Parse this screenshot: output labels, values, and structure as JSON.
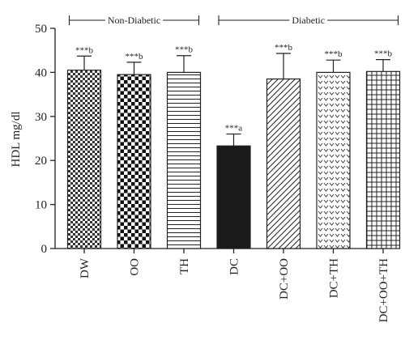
{
  "chart_data": {
    "type": "bar",
    "title": "",
    "xlabel": "",
    "ylabel": "HDL mg/dl",
    "ylim": [
      0,
      50
    ],
    "yticks": [
      0,
      10,
      20,
      30,
      40,
      50
    ],
    "categories": [
      "DW",
      "OO",
      "TH",
      "DC",
      "DC+OO",
      "DC+TH",
      "DC+OO+TH"
    ],
    "values": [
      40.5,
      39.5,
      40.0,
      23.3,
      38.5,
      40.0,
      40.2
    ],
    "errors": [
      3.2,
      2.8,
      3.8,
      2.7,
      5.8,
      2.8,
      2.7
    ],
    "significance": [
      "***b",
      "***b",
      "***b",
      "***a",
      "***b",
      "***b",
      "***b"
    ],
    "patterns": [
      "checker-fine",
      "checker-bold",
      "horizontal-lines",
      "solid-black",
      "diagonal-lines",
      "chevrons",
      "grid"
    ],
    "groups": [
      {
        "label": "Non-Diabetic",
        "from": 0,
        "to": 2
      },
      {
        "label": "Diabetic",
        "from": 3,
        "to": 6
      }
    ],
    "colors": {
      "bar_stroke": "#222222",
      "solid_fill": "#1a1a1a",
      "axis": "#222222"
    },
    "grid": false,
    "legend": "none"
  }
}
